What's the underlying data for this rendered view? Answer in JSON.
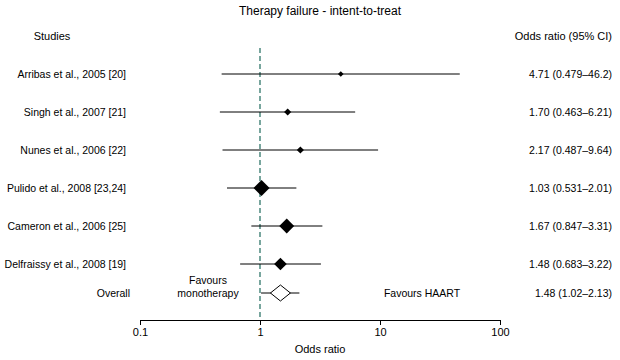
{
  "chart_data": {
    "type": "forest",
    "title": "Therapy failure - intent-to-treat",
    "column_headers": [
      "Studies",
      "Odds ratio (95% CI)"
    ],
    "x_label": "Odds ratio",
    "categories": [
      "Arribas et al., 2005 [20]",
      "Singh et al., 2007 [21]",
      "Nunes et al., 2006 [22]",
      "Pulido et al., 2008 [23,24]",
      "Cameron et al., 2006 [25]",
      "Delfraissy et al., 2008 [19]"
    ],
    "values": [
      4.71,
      1.7,
      2.17,
      1.03,
      1.67,
      1.48
    ],
    "lower": [
      0.479,
      0.463,
      0.487,
      0.531,
      0.847,
      0.683
    ],
    "upper": [
      46.2,
      6.21,
      9.64,
      2.01,
      3.31,
      3.22
    ],
    "value_labels": [
      "4.71 (0.479–46.2)",
      "1.70 (0.463–6.21)",
      "2.17 (0.487–9.64)",
      "1.03 (0.531–2.01)",
      "1.67 (0.847–3.31)",
      "1.48 (0.683–3.22)"
    ],
    "weights": [
      5,
      8,
      8,
      40,
      35,
      25
    ],
    "overall": {
      "label": "Overall",
      "value": 1.48,
      "lower": 1.02,
      "upper": 2.13,
      "value_label": "1.48 (1.02–2.13)"
    },
    "annotations": [
      "Favours monotherapy",
      "Favours HAART"
    ],
    "reference_line": 1,
    "xlim": [
      0.1,
      100
    ],
    "xticks": [
      0.1,
      1,
      10,
      100
    ],
    "log": "x",
    "color": "#000000"
  }
}
